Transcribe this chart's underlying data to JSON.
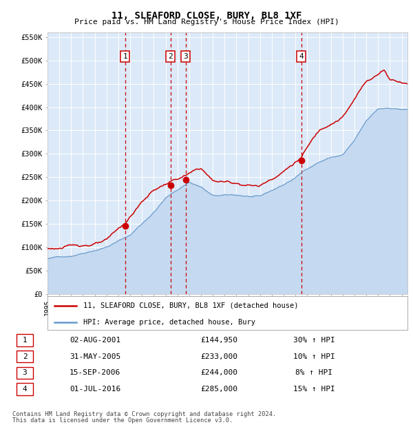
{
  "title": "11, SLEAFORD CLOSE, BURY, BL8 1XF",
  "subtitle": "Price paid vs. HM Land Registry's House Price Index (HPI)",
  "footer_line1": "Contains HM Land Registry data © Crown copyright and database right 2024.",
  "footer_line2": "This data is licensed under the Open Government Licence v3.0.",
  "legend_label_red": "11, SLEAFORD CLOSE, BURY, BL8 1XF (detached house)",
  "legend_label_blue": "HPI: Average price, detached house, Bury",
  "sale_events": [
    {
      "label": "1",
      "date": "02-AUG-2001",
      "price": "£144,950",
      "hpi": "30% ↑ HPI",
      "year": 2001.58
    },
    {
      "label": "2",
      "date": "31-MAY-2005",
      "price": "£233,000",
      "hpi": "10% ↑ HPI",
      "year": 2005.41
    },
    {
      "label": "3",
      "date": "15-SEP-2006",
      "price": "£244,000",
      "hpi": "8% ↑ HPI",
      "year": 2006.7
    },
    {
      "label": "4",
      "date": "01-JUL-2016",
      "price": "£285,000",
      "hpi": "15% ↑ HPI",
      "year": 2016.5
    }
  ],
  "sale_prices": [
    144950,
    233000,
    244000,
    285000
  ],
  "ylim": [
    0,
    560000
  ],
  "xlim_start": 1995.0,
  "xlim_end": 2025.5,
  "yticks": [
    0,
    50000,
    100000,
    150000,
    200000,
    250000,
    300000,
    350000,
    400000,
    450000,
    500000,
    550000
  ],
  "ytick_labels": [
    "£0",
    "£50K",
    "£100K",
    "£150K",
    "£200K",
    "£250K",
    "£300K",
    "£350K",
    "£400K",
    "£450K",
    "£500K",
    "£550K"
  ],
  "background_color": "#dce9f8",
  "grid_color": "#ffffff",
  "red_color": "#cc0000",
  "blue_color": "#6699cc",
  "blue_fill_color": "#c5d9f0"
}
